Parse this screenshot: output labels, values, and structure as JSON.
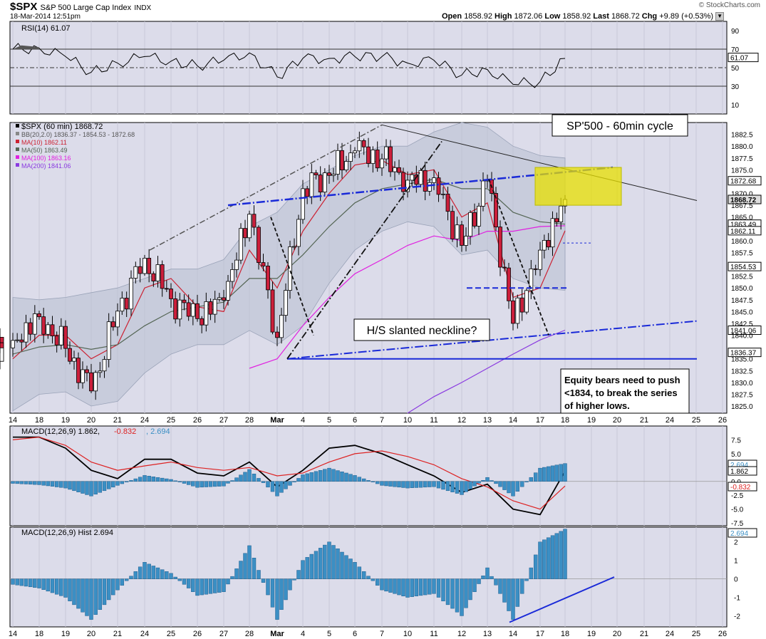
{
  "header": {
    "symbol": "$SPX",
    "name": "S&P 500 Large Cap Index",
    "exchange": "INDX",
    "date_time": "18-Mar-2014 12:51pm",
    "watermark": "© StockCharts.com",
    "open_label": "Open",
    "open": "1858.92",
    "high_label": "High",
    "high": "1872.06",
    "low_label": "Low",
    "low": "1858.92",
    "last_label": "Last",
    "last": "1868.72",
    "chg_label": "Chg",
    "chg": "+9.89 (+0.53%)"
  },
  "colors": {
    "panel_bg": "#dcdcea",
    "grid": "#c8c8d8",
    "up_candle": "#ffffff",
    "down_candle": "#cc1f3b",
    "bb_fill": "#b8c0d0",
    "ma10": "#cc2233",
    "ma50": "#556655",
    "ma100": "#e020e0",
    "ma200": "#8a3ae0",
    "macd_line": "#000000",
    "signal_line": "#dd2222",
    "hist": "#3b8fc4",
    "trend_blue": "#1a2ad8",
    "highlight": "#e8e000"
  },
  "rsi_panel": {
    "label": "RSI(14)",
    "value": "61.07",
    "ticks": [
      "90",
      "70",
      "50",
      "30",
      "10"
    ]
  },
  "price_panel": {
    "legend": [
      {
        "name": "$SPX (60 min)",
        "value": "1868.72"
      },
      {
        "name": "BB(20,2.0)",
        "value": "1836.37 - 1854.53 - 1872.68"
      },
      {
        "name": "MA(10)",
        "value": "1862.11"
      },
      {
        "name": "MA(50)",
        "value": "1863.49"
      },
      {
        "name": "MA(100)",
        "value": "1863.16"
      },
      {
        "name": "MA(200)",
        "value": "1841.06"
      }
    ],
    "ticks": [
      "1882.5",
      "1880.0",
      "1877.5",
      "1875.0",
      "1872.68",
      "1870.0",
      "1868.72",
      "1867.5",
      "1865.0",
      "1863.49",
      "1862.11",
      "1860.0",
      "1857.5",
      "1854.53",
      "1852.5",
      "1850.0",
      "1847.5",
      "1845.0",
      "1842.5",
      "1841.06",
      "1840.0",
      "1836.37",
      "1835.0",
      "1832.5",
      "1830.0",
      "1827.5",
      "1825.0"
    ],
    "annotations": {
      "cycle_title": "SP'500 - 60min cycle",
      "neckline": "H/S slanted neckline?",
      "bears_note_1": "Equity bears need to push",
      "bears_note_2": "<1834, to break the series",
      "bears_note_3": "of higher lows."
    }
  },
  "macd_panel": {
    "label": "MACD(12,26,9)",
    "macd": "1.862",
    "signal": "-0.832",
    "hist": "2.694",
    "ticks": [
      "7.5",
      "5.0",
      "2.5",
      "0.0",
      "-2.5",
      "-5.0",
      "-7.5"
    ]
  },
  "hist_panel": {
    "label": "MACD(12,26,9) Hist",
    "value": "2.694",
    "ticks": [
      "2",
      "1",
      "0",
      "-1",
      "-2"
    ]
  },
  "x_axis": [
    "14",
    "18",
    "19",
    "20",
    "21",
    "24",
    "25",
    "26",
    "27",
    "28",
    "Mar",
    "4",
    "5",
    "6",
    "7",
    "10",
    "11",
    "12",
    "13",
    "14",
    "17",
    "18",
    "19",
    "20",
    "21",
    "24",
    "25",
    "26"
  ],
  "chart_data": [
    {
      "type": "line",
      "title": "RSI(14) 61.07",
      "ylim": [
        0,
        100
      ],
      "x": [
        "14",
        "18",
        "19",
        "20",
        "21",
        "24",
        "25",
        "26",
        "27",
        "28",
        "Mar",
        "4",
        "5",
        "6",
        "7",
        "10",
        "11",
        "12",
        "13",
        "14",
        "17",
        "18"
      ],
      "series": [
        {
          "name": "RSI(14)",
          "values": [
            70,
            71,
            62,
            45,
            55,
            62,
            57,
            52,
            58,
            66,
            40,
            60,
            60,
            62,
            62,
            55,
            58,
            42,
            48,
            32,
            35,
            60
          ]
        }
      ]
    },
    {
      "type": "line",
      "title": "$SPX (60 min) 1868.72",
      "ylim": [
        1823.5,
        1885
      ],
      "x": [
        "14",
        "18",
        "19",
        "20",
        "21",
        "24",
        "25",
        "26",
        "27",
        "28",
        "Mar",
        "4",
        "5",
        "6",
        "7",
        "10",
        "11",
        "12",
        "13",
        "14",
        "17",
        "18"
      ],
      "series": [
        {
          "name": "$SPX (60 min)",
          "values": [
            1838.9,
            1843.9,
            1837.2,
            1828.2,
            1845.1,
            1856.3,
            1847.7,
            1843.5,
            1847.4,
            1865.6,
            1839.5,
            1871.0,
            1873.8,
            1879.0,
            1877.3,
            1872.8,
            1873.3,
            1859.0,
            1872.9,
            1842.5,
            1858.0,
            1868.72
          ]
        },
        {
          "name": "MA(10)",
          "values": [
            1835.0,
            1840.0,
            1840.0,
            1835.0,
            1838.0,
            1850.0,
            1852.0,
            1846.0,
            1845.0,
            1858.0,
            1850.0,
            1862.0,
            1870.0,
            1876.0,
            1877.0,
            1874.0,
            1875.0,
            1865.0,
            1868.0,
            1848.0,
            1850.0,
            1862.11
          ]
        },
        {
          "name": "MA(50)",
          "values": [
            1836.0,
            1837.5,
            1838.0,
            1837.0,
            1838.0,
            1842.0,
            1845.0,
            1846.0,
            1847.0,
            1852.0,
            1852.0,
            1857.0,
            1863.0,
            1868.0,
            1871.0,
            1872.0,
            1873.0,
            1871.0,
            1871.0,
            1866.0,
            1864.0,
            1863.49
          ]
        },
        {
          "name": "MA(100)",
          "values": [
            null,
            null,
            null,
            null,
            null,
            null,
            null,
            null,
            null,
            1833.0,
            1835.0,
            1842.0,
            1848.0,
            1853.0,
            1856.0,
            1859.0,
            1861.0,
            1860.0,
            1862.0,
            1862.0,
            1863.0,
            1863.16
          ]
        },
        {
          "name": "MA(200)",
          "values": [
            null,
            null,
            null,
            null,
            null,
            null,
            null,
            null,
            null,
            null,
            null,
            null,
            null,
            null,
            null,
            1823.5,
            1827.0,
            1830.0,
            1833.0,
            1836.0,
            1839.0,
            1841.06
          ]
        }
      ]
    },
    {
      "type": "line",
      "title": "MACD(12,26,9) 1.862, -0.832, 2.694",
      "ylim": [
        -8,
        10
      ],
      "x": [
        "14",
        "18",
        "19",
        "20",
        "21",
        "24",
        "25",
        "26",
        "27",
        "28",
        "Mar",
        "4",
        "5",
        "6",
        "7",
        "10",
        "11",
        "12",
        "13",
        "14",
        "17",
        "18"
      ],
      "series": [
        {
          "name": "MACD",
          "values": [
            8.0,
            8.0,
            6.0,
            2.0,
            0.5,
            4.0,
            4.0,
            1.5,
            1.0,
            3.5,
            -1.0,
            2.0,
            6.0,
            6.5,
            5.0,
            3.0,
            1.0,
            -2.0,
            -0.5,
            -5.0,
            -6.0,
            1.862
          ]
        },
        {
          "name": "Signal",
          "values": [
            7.5,
            8.0,
            6.5,
            3.5,
            2.0,
            2.8,
            3.5,
            2.5,
            2.0,
            2.5,
            1.0,
            1.5,
            3.5,
            5.0,
            5.5,
            4.5,
            3.0,
            0.5,
            -1.0,
            -3.5,
            -5.0,
            -0.832
          ]
        }
      ]
    },
    {
      "type": "bar",
      "title": "MACD(12,26,9) Hist 2.694",
      "ylim": [
        -2.6,
        2.8
      ],
      "x": [
        "14",
        "18",
        "19",
        "20",
        "21",
        "24",
        "25",
        "26",
        "27",
        "28",
        "Mar",
        "4",
        "5",
        "6",
        "7",
        "10",
        "11",
        "12",
        "13",
        "14",
        "17",
        "18"
      ],
      "series": [
        {
          "name": "MACD(12,26,9) Hist",
          "values": [
            -0.3,
            -0.5,
            -1.0,
            -2.2,
            -0.6,
            0.9,
            0.3,
            -0.9,
            -0.7,
            1.8,
            -2.2,
            1.0,
            2.0,
            0.9,
            -0.6,
            -1.0,
            -0.8,
            -2.0,
            0.6,
            -2.2,
            2.0,
            2.694
          ]
        }
      ]
    }
  ]
}
